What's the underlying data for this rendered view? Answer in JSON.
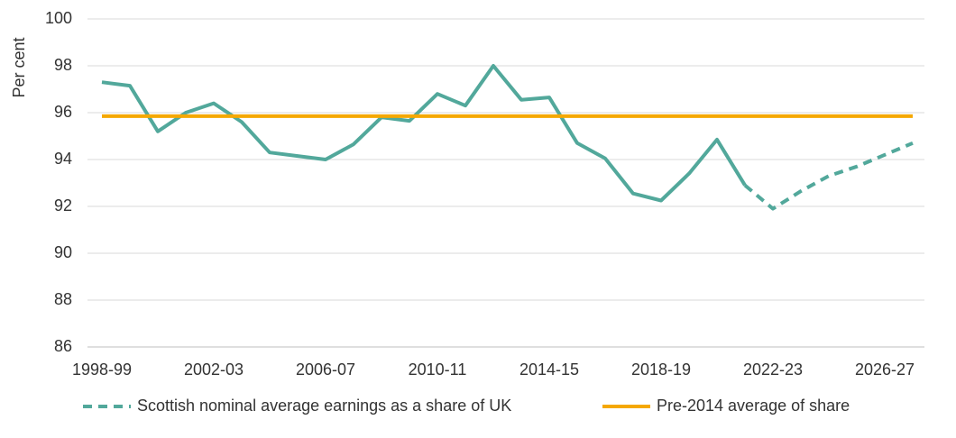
{
  "chart_data": {
    "type": "line",
    "y_label": "Per cent",
    "categories": [
      "1998-99",
      null,
      null,
      null,
      "2002-03",
      null,
      null,
      null,
      "2006-07",
      null,
      null,
      null,
      "2010-11",
      null,
      null,
      null,
      "2014-15",
      null,
      null,
      null,
      "2018-19",
      null,
      null,
      null,
      "2022-23",
      null,
      null,
      null,
      "2026-27",
      null
    ],
    "series": [
      {
        "name": "Scottish nominal average earnings as a share of UK",
        "color": "#52a89b",
        "projection_start": 23,
        "values": [
          97.3,
          97.15,
          95.2,
          96.0,
          96.4,
          95.6,
          94.3,
          94.15,
          94.0,
          94.65,
          95.8,
          95.65,
          96.8,
          96.3,
          98.0,
          96.55,
          96.65,
          94.7,
          94.05,
          92.55,
          92.25,
          93.4,
          94.85,
          92.9,
          91.9,
          92.65,
          93.3,
          93.7,
          94.2,
          94.7
        ]
      },
      {
        "name": "Pre-2014 average of share",
        "color": "#f5a800",
        "value": 95.85
      }
    ],
    "ylim": [
      86,
      100
    ],
    "yticks": [
      86,
      88,
      90,
      92,
      94,
      96,
      98,
      100
    ],
    "grid": true
  }
}
